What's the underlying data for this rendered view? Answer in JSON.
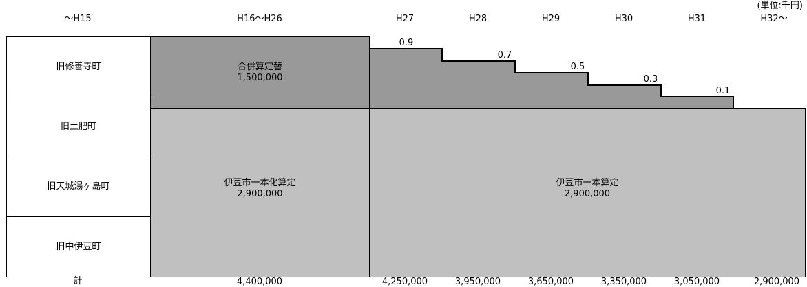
{
  "unit": "(単位:千円)",
  "periods": [
    "〜H15",
    "H16〜H26",
    "H27",
    "H28",
    "H29",
    "H30",
    "H31",
    "H32〜"
  ],
  "towns": [
    "旧修善寺町",
    "旧土肥町",
    "旧天城湯ヶ島町",
    "旧中伊豆町"
  ],
  "total_label": "計",
  "blocks": {
    "merger_special": {
      "label": "合併算定替",
      "value": "1,500,000"
    },
    "combined_calc": {
      "label": "伊豆市一本化算定",
      "value": "2,900,000"
    },
    "single_calc": {
      "label": "伊豆市一本算定",
      "value": "2,900,000"
    }
  },
  "phaseout_rates": [
    {
      "period": "H27",
      "rate": "0.9"
    },
    {
      "period": "H28",
      "rate": "0.7"
    },
    {
      "period": "H29",
      "rate": "0.5"
    },
    {
      "period": "H30",
      "rate": "0.3"
    },
    {
      "period": "H31",
      "rate": "0.1"
    }
  ],
  "totals": [
    "4,400,000",
    "4,250,000",
    "3,950,000",
    "3,650,000",
    "3,350,000",
    "3,050,000",
    "2,900,000"
  ],
  "colors": {
    "dark_gray": "#999999",
    "light_gray": "#c0c0c0",
    "border": "#000000"
  }
}
